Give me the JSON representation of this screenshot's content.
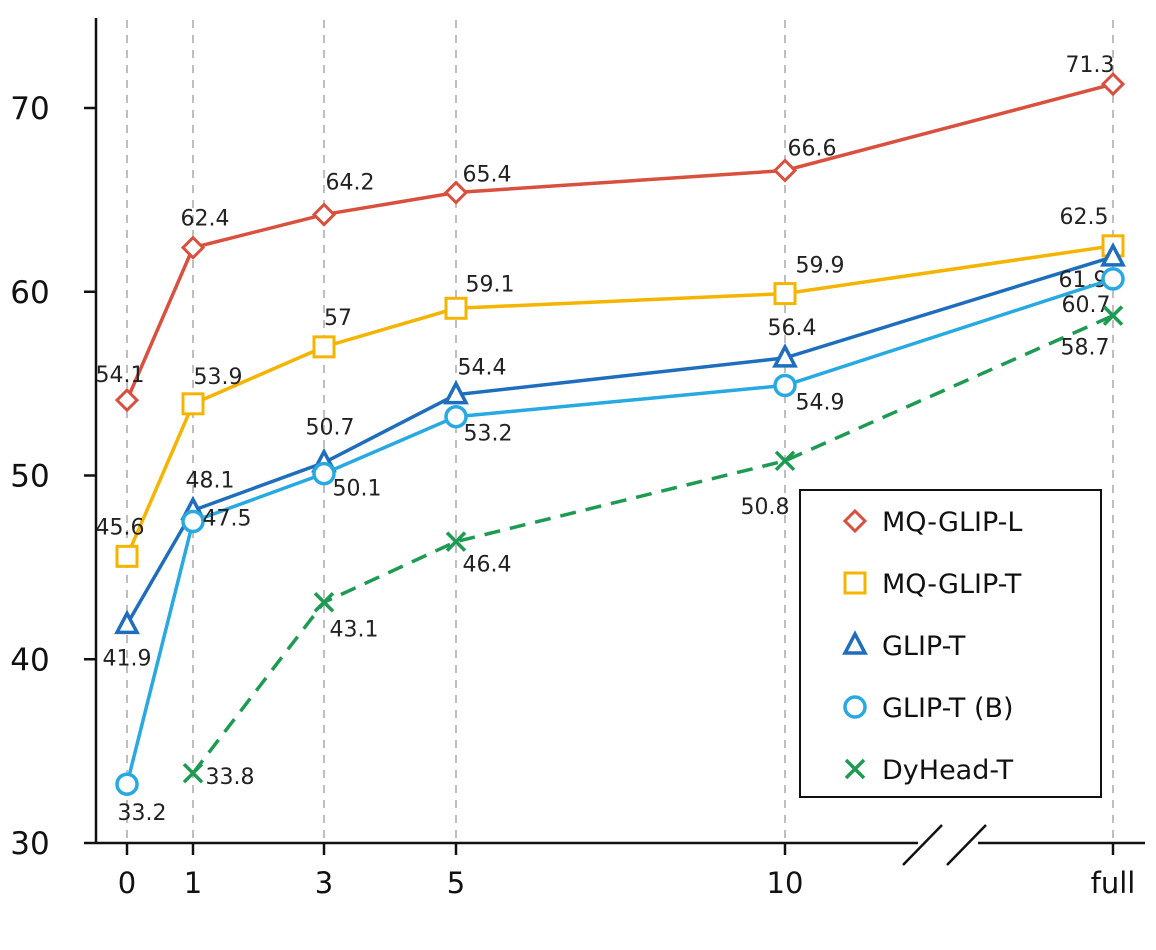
{
  "chart_data": {
    "type": "line",
    "title": "",
    "xlabel": "",
    "ylabel": "",
    "categories": [
      "0",
      "1",
      "3",
      "5",
      "10",
      "full"
    ],
    "x_axis_break": "between 10 and full",
    "ylim": [
      30,
      75
    ],
    "yticks": [
      30,
      40,
      50,
      60,
      70
    ],
    "grid": "vertical dashed lines at each x category",
    "legend_position": "bottom-right",
    "series": [
      {
        "name": "MQ-GLIP-L",
        "color": "#d9503f",
        "marker": "diamond",
        "line": "solid",
        "x": [
          "0",
          "1",
          "3",
          "5",
          "10",
          "full"
        ],
        "values": [
          54.1,
          62.4,
          64.2,
          65.4,
          66.6,
          71.3
        ],
        "labels": [
          "54.1",
          "62.4",
          "64.2",
          "65.4",
          "66.6",
          "71.3"
        ]
      },
      {
        "name": "MQ-GLIP-T",
        "color": "#f4b400",
        "marker": "square",
        "line": "solid",
        "x": [
          "0",
          "1",
          "3",
          "5",
          "10",
          "full"
        ],
        "values": [
          45.6,
          53.9,
          57,
          59.1,
          59.9,
          62.5
        ],
        "labels": [
          "45.6",
          "53.9",
          "57",
          "59.1",
          "59.9",
          "62.5"
        ]
      },
      {
        "name": "GLIP-T",
        "color": "#1f6dbd",
        "marker": "triangle",
        "line": "solid",
        "x": [
          "0",
          "1",
          "3",
          "5",
          "10",
          "full"
        ],
        "values": [
          41.9,
          48.1,
          50.7,
          54.4,
          56.4,
          61.9
        ],
        "labels": [
          "41.9",
          "48.1",
          "50.7",
          "54.4",
          "56.4",
          "61.9"
        ]
      },
      {
        "name": "GLIP-T (B)",
        "color": "#27a9e1",
        "marker": "circle",
        "line": "solid",
        "x": [
          "0",
          "1",
          "3",
          "5",
          "10",
          "full"
        ],
        "values": [
          33.2,
          47.5,
          50.1,
          53.2,
          54.9,
          60.7
        ],
        "labels": [
          "33.2",
          "47.5",
          "50.1",
          "53.2",
          "54.9",
          "60.7"
        ]
      },
      {
        "name": "DyHead-T",
        "color": "#1e9b52",
        "marker": "x",
        "line": "dashed",
        "x": [
          "1",
          "3",
          "5",
          "10",
          "full"
        ],
        "values": [
          33.8,
          43.1,
          46.4,
          50.8,
          58.7
        ],
        "labels": [
          "33.8",
          "43.1",
          "46.4",
          "50.8",
          "58.7"
        ]
      }
    ]
  }
}
